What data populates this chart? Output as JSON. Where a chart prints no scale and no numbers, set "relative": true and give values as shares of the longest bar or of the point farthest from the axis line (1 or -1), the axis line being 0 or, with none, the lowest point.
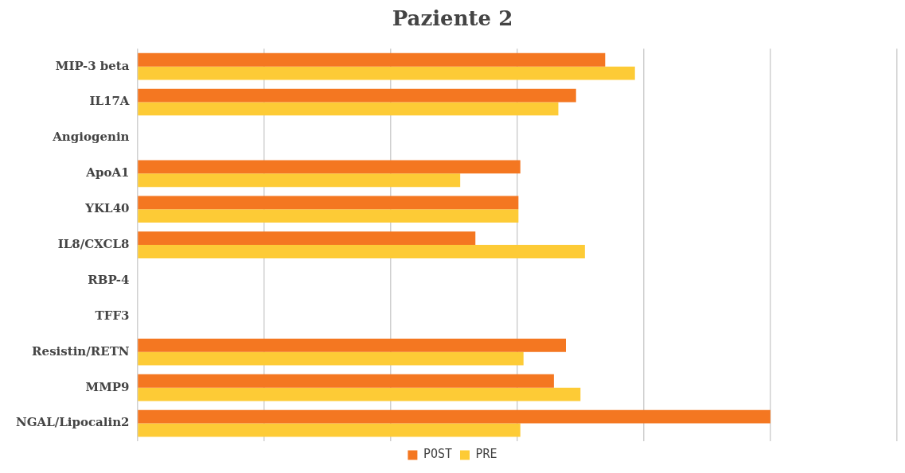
{
  "chart_data": {
    "type": "bar",
    "orientation": "horizontal",
    "relative": true,
    "title": "Paziente 2",
    "categories": [
      "MIP-3 beta",
      "IL17A",
      "Angiogenin",
      "ApoA1",
      "YKL40",
      "IL8/CXCL8",
      "RBP-4",
      "TFF3",
      "Resistin/RETN",
      "MMP9",
      "NGAL/Lipocalin2"
    ],
    "series": [
      {
        "name": "POST",
        "color": "#f47721",
        "values": [
          0.739,
          0.693,
          null,
          0.605,
          0.602,
          0.534,
          null,
          null,
          0.677,
          0.658,
          1
        ]
      },
      {
        "name": "PRE",
        "color": "#fdcb36",
        "values": [
          0.786,
          0.665,
          null,
          0.51,
          0.602,
          0.707,
          null,
          null,
          0.61,
          0.7,
          0.605
        ]
      }
    ],
    "grid": "x",
    "legend": "bottom"
  }
}
